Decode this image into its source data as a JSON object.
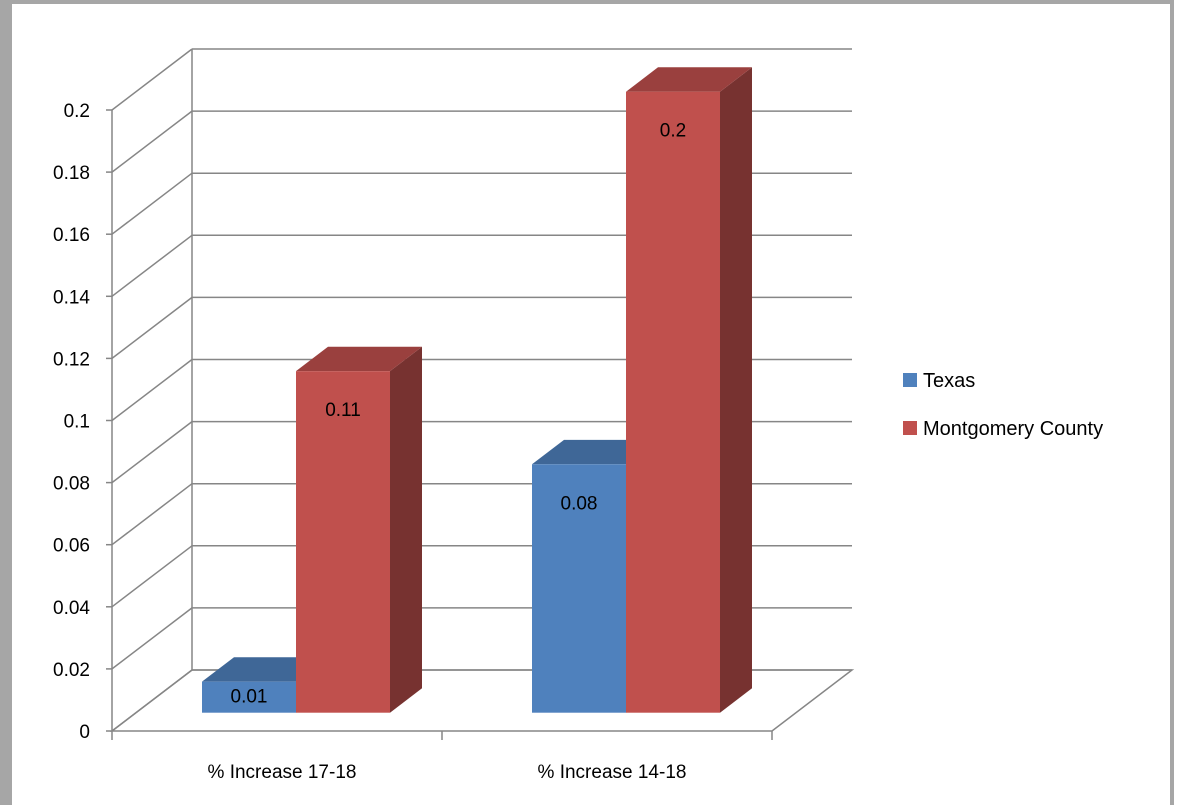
{
  "chart_data": {
    "type": "bar",
    "categories": [
      "% Increase 17-18",
      "% Increase 14-18"
    ],
    "series": [
      {
        "name": "Texas",
        "values": [
          0.01,
          0.08
        ],
        "color": "#4f81bd"
      },
      {
        "name": "Montgomery County",
        "values": [
          0.11,
          0.2
        ],
        "color": "#c0504d"
      }
    ],
    "data_labels": [
      [
        "0.01",
        "0.08"
      ],
      [
        "0.11",
        "0.2"
      ]
    ],
    "y_ticks": [
      "0",
      "0.02",
      "0.04",
      "0.06",
      "0.08",
      "0.1",
      "0.12",
      "0.14",
      "0.16",
      "0.18",
      "0.2"
    ],
    "ylim": [
      0,
      0.2
    ],
    "title": "",
    "xlabel": "",
    "ylabel": "",
    "grid": true,
    "legend": "right",
    "style": "3d-clustered-column"
  }
}
